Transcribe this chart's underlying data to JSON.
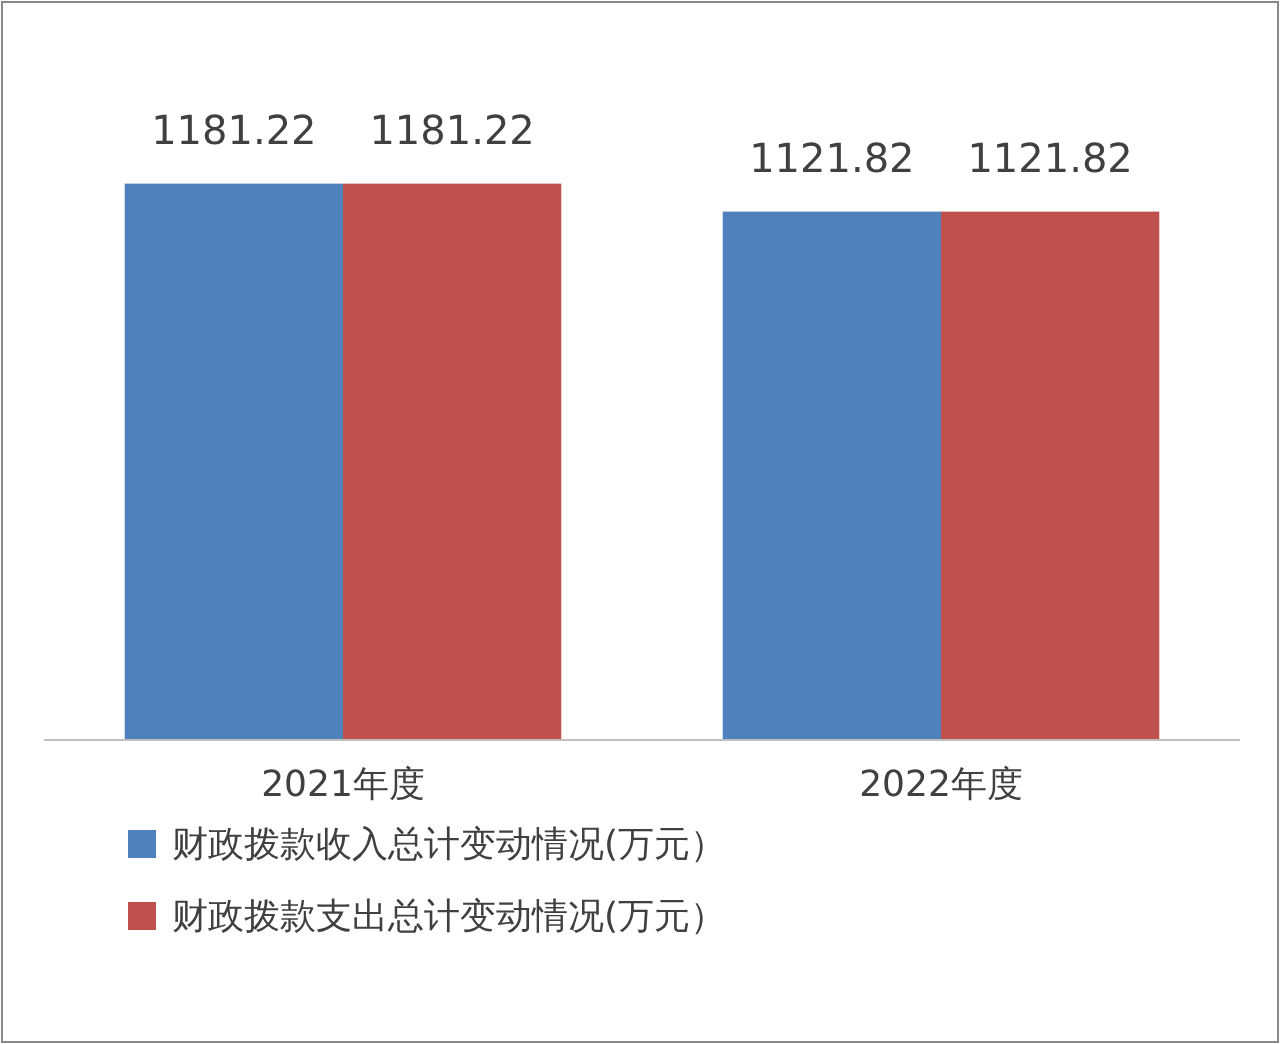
{
  "chart_data": {
    "type": "bar",
    "categories": [
      "2021年度",
      "2022年度"
    ],
    "series": [
      {
        "name": "财政拨款收入总计变动情况(万元）",
        "color": "#4f81bd",
        "values": [
          1181.22,
          1121.82
        ]
      },
      {
        "name": "财政拨款支出总计变动情况(万元）",
        "color": "#c0504d",
        "values": [
          1181.22,
          1121.82
        ]
      }
    ],
    "data_labels": true,
    "legend": "bottom left"
  }
}
